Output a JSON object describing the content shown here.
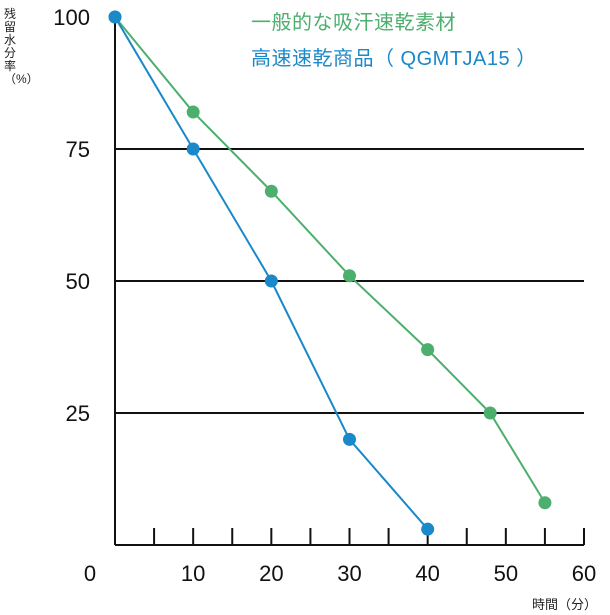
{
  "chart_data": {
    "type": "line",
    "ylabel": "残留水分率（%）",
    "xlabel": "時間（分）",
    "xlim": [
      0,
      60
    ],
    "ylim": [
      0,
      100
    ],
    "x_ticks": [
      0,
      10,
      20,
      30,
      40,
      50,
      60
    ],
    "y_ticks": [
      25,
      50,
      75,
      100
    ],
    "grid": "horizontal lines at 25, 50, 75",
    "legend_position": "top-right",
    "series": [
      {
        "name": "一般的な吸汗速乾素材",
        "color": "#4caf6e",
        "points": [
          [
            0,
            100
          ],
          [
            10,
            82
          ],
          [
            20,
            67
          ],
          [
            30,
            51
          ],
          [
            40,
            37
          ],
          [
            48,
            25
          ],
          [
            55,
            8
          ]
        ]
      },
      {
        "name": "高速速乾商品（ QGMTJA15 ）",
        "color": "#1a88c9",
        "points": [
          [
            0,
            100
          ],
          [
            10,
            75
          ],
          [
            20,
            50
          ],
          [
            30,
            20
          ],
          [
            40,
            3
          ]
        ]
      }
    ]
  }
}
